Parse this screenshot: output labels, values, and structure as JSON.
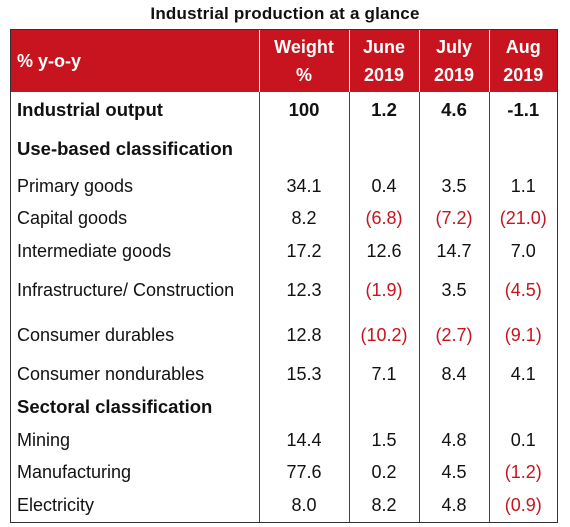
{
  "title": "Industrial production at a glance",
  "header": {
    "label": "% y-o-y",
    "columns": [
      {
        "line1": "Weight",
        "line2": "%"
      },
      {
        "line1": "June",
        "line2": "2019"
      },
      {
        "line1": "July",
        "line2": "2019"
      },
      {
        "line1": "Aug",
        "line2": "2019"
      }
    ]
  },
  "rows": [
    {
      "label": "Industrial output",
      "type": "bold",
      "values": [
        "100",
        "1.2",
        "4.6",
        "-1.1"
      ],
      "neg": [
        false,
        false,
        false,
        false
      ],
      "h": "r-out"
    },
    {
      "label": "Use-based classification",
      "type": "section",
      "values": [
        "",
        "",
        "",
        ""
      ],
      "neg": [
        false,
        false,
        false,
        false
      ],
      "h": "r-sec1"
    },
    {
      "label": "Primary goods",
      "type": "std",
      "values": [
        "34.1",
        "0.4",
        "3.5",
        "1.1"
      ],
      "neg": [
        false,
        false,
        false,
        false
      ],
      "h": "r-std"
    },
    {
      "label": "Capital goods",
      "type": "std",
      "values": [
        "8.2",
        "(6.8)",
        "(7.2)",
        "(21.0)"
      ],
      "neg": [
        false,
        true,
        true,
        true
      ],
      "h": "r-std"
    },
    {
      "label": "Intermediate goods",
      "type": "std",
      "values": [
        "17.2",
        "12.6",
        "14.7",
        "7.0"
      ],
      "neg": [
        false,
        false,
        false,
        false
      ],
      "h": "r-std"
    },
    {
      "label": "Infrastructure/ Construction",
      "type": "std",
      "values": [
        "12.3",
        "(1.9)",
        "3.5",
        "(4.5)"
      ],
      "neg": [
        false,
        true,
        false,
        true
      ],
      "h": "r-tall"
    },
    {
      "label": "Consumer durables",
      "type": "std",
      "values": [
        "12.8",
        "(10.2)",
        "(2.7)",
        "(9.1)"
      ],
      "neg": [
        false,
        true,
        true,
        true
      ],
      "h": "r-tall"
    },
    {
      "label": "Consumer nondurables",
      "type": "std",
      "values": [
        "15.3",
        "7.1",
        "8.4",
        "4.1"
      ],
      "neg": [
        false,
        false,
        false,
        false
      ],
      "h": "r-std"
    },
    {
      "label": "Sectoral classification",
      "type": "section",
      "values": [
        "",
        "",
        "",
        ""
      ],
      "neg": [
        false,
        false,
        false,
        false
      ],
      "h": "r-sec2"
    },
    {
      "label": "Mining",
      "type": "std",
      "values": [
        "14.4",
        "1.5",
        "4.8",
        "0.1"
      ],
      "neg": [
        false,
        false,
        false,
        false
      ],
      "h": "r-std"
    },
    {
      "label": "Manufacturing",
      "type": "std",
      "values": [
        "77.6",
        "0.2",
        "4.5",
        "(1.2)"
      ],
      "neg": [
        false,
        false,
        false,
        true
      ],
      "h": "r-std"
    },
    {
      "label": "Electricity",
      "type": "std",
      "values": [
        "8.0",
        "8.2",
        "4.8",
        "(0.9)"
      ],
      "neg": [
        false,
        false,
        false,
        true
      ],
      "h": "r-std"
    }
  ],
  "colors": {
    "header_bg": "#c8141e",
    "negative": "#c8141e"
  }
}
